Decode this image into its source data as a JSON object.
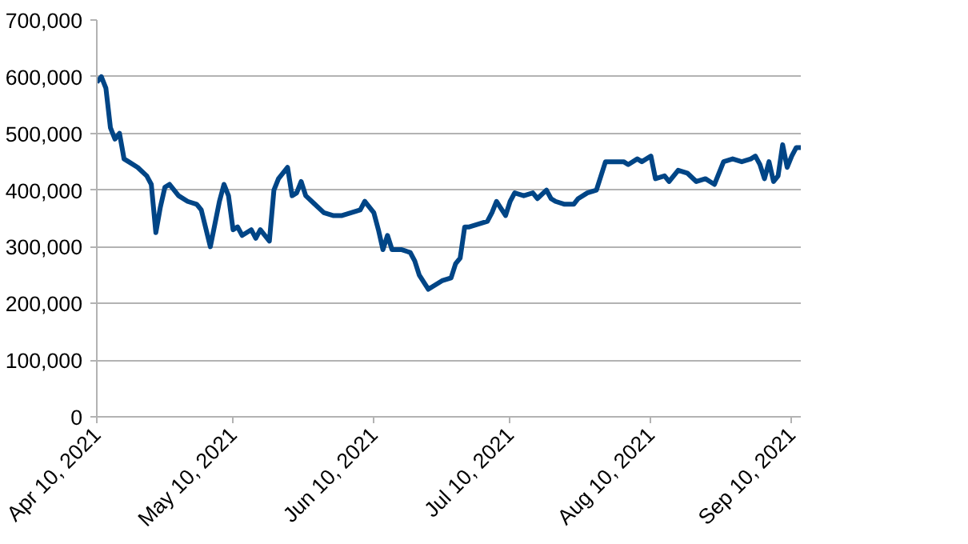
{
  "chart_data": {
    "type": "line",
    "x": [
      "2021-04-10",
      "2021-04-11",
      "2021-04-12",
      "2021-04-13",
      "2021-04-14",
      "2021-04-15",
      "2021-04-16",
      "2021-04-17",
      "2021-04-19",
      "2021-04-21",
      "2021-04-22",
      "2021-04-23",
      "2021-04-24",
      "2021-04-25",
      "2021-04-26",
      "2021-04-28",
      "2021-04-30",
      "2021-05-02",
      "2021-05-03",
      "2021-05-05",
      "2021-05-06",
      "2021-05-07",
      "2021-05-08",
      "2021-05-09",
      "2021-05-10",
      "2021-05-11",
      "2021-05-12",
      "2021-05-14",
      "2021-05-15",
      "2021-05-16",
      "2021-05-18",
      "2021-05-19",
      "2021-05-20",
      "2021-05-22",
      "2021-05-23",
      "2021-05-24",
      "2021-05-25",
      "2021-05-26",
      "2021-05-28",
      "2021-05-30",
      "2021-06-01",
      "2021-06-03",
      "2021-06-05",
      "2021-06-07",
      "2021-06-08",
      "2021-06-10",
      "2021-06-11",
      "2021-06-12",
      "2021-06-13",
      "2021-06-14",
      "2021-06-16",
      "2021-06-18",
      "2021-06-19",
      "2021-06-20",
      "2021-06-22",
      "2021-06-23",
      "2021-06-25",
      "2021-06-27",
      "2021-06-28",
      "2021-06-29",
      "2021-06-30",
      "2021-07-01",
      "2021-07-03",
      "2021-07-05",
      "2021-07-06",
      "2021-07-07",
      "2021-07-09",
      "2021-07-10",
      "2021-07-11",
      "2021-07-13",
      "2021-07-15",
      "2021-07-16",
      "2021-07-18",
      "2021-07-19",
      "2021-07-20",
      "2021-07-22",
      "2021-07-24",
      "2021-07-25",
      "2021-07-27",
      "2021-07-29",
      "2021-07-31",
      "2021-08-02",
      "2021-08-04",
      "2021-08-05",
      "2021-08-07",
      "2021-08-08",
      "2021-08-10",
      "2021-08-11",
      "2021-08-13",
      "2021-08-14",
      "2021-08-16",
      "2021-08-18",
      "2021-08-20",
      "2021-08-22",
      "2021-08-23",
      "2021-08-24",
      "2021-08-26",
      "2021-08-28",
      "2021-08-30",
      "2021-09-01",
      "2021-09-02",
      "2021-09-03",
      "2021-09-04",
      "2021-09-05",
      "2021-09-06",
      "2021-09-07",
      "2021-09-08",
      "2021-09-09",
      "2021-09-10",
      "2021-09-11",
      "2021-09-12"
    ],
    "series": [
      {
        "color": "#004586",
        "values": [
          590000,
          600000,
          580000,
          510000,
          490000,
          500000,
          455000,
          450000,
          440000,
          425000,
          410000,
          325000,
          370000,
          405000,
          410000,
          390000,
          380000,
          375000,
          365000,
          300000,
          340000,
          380000,
          410000,
          390000,
          330000,
          335000,
          320000,
          330000,
          315000,
          330000,
          310000,
          400000,
          420000,
          440000,
          390000,
          395000,
          415000,
          390000,
          375000,
          360000,
          355000,
          355000,
          360000,
          365000,
          380000,
          360000,
          330000,
          295000,
          320000,
          295000,
          295000,
          290000,
          275000,
          250000,
          225000,
          230000,
          240000,
          245000,
          270000,
          280000,
          335000,
          335000,
          340000,
          345000,
          360000,
          380000,
          355000,
          380000,
          395000,
          390000,
          395000,
          385000,
          400000,
          385000,
          380000,
          375000,
          375000,
          385000,
          395000,
          400000,
          450000,
          450000,
          450000,
          445000,
          455000,
          450000,
          460000,
          420000,
          425000,
          415000,
          435000,
          430000,
          415000,
          420000,
          415000,
          410000,
          450000,
          455000,
          450000,
          455000,
          460000,
          445000,
          420000,
          450000,
          415000,
          425000,
          480000,
          440000,
          460000,
          475000,
          475000
        ]
      }
    ],
    "xlim": [
      "2021-04-10",
      "2021-09-12"
    ],
    "xticks": [
      {
        "value": "2021-04-10",
        "label": "Apr 10, 2021"
      },
      {
        "value": "2021-05-10",
        "label": "May 10, 2021"
      },
      {
        "value": "2021-06-10",
        "label": "Jun 10, 2021"
      },
      {
        "value": "2021-07-10",
        "label": "Jul 10, 2021"
      },
      {
        "value": "2021-08-10",
        "label": "Aug 10, 2021"
      },
      {
        "value": "2021-09-10",
        "label": "Sep 10, 2021"
      }
    ],
    "ylim": [
      0,
      700000
    ],
    "yticks": [
      {
        "value": 0,
        "label": "0"
      },
      {
        "value": 100000,
        "label": "100,000"
      },
      {
        "value": 200000,
        "label": "200,000"
      },
      {
        "value": 300000,
        "label": "300,000"
      },
      {
        "value": 400000,
        "label": "400,000"
      },
      {
        "value": 500000,
        "label": "500,000"
      },
      {
        "value": 600000,
        "label": "600,000"
      },
      {
        "value": 700000,
        "label": "700,000"
      }
    ],
    "grid": "y",
    "line_style": "solid"
  }
}
